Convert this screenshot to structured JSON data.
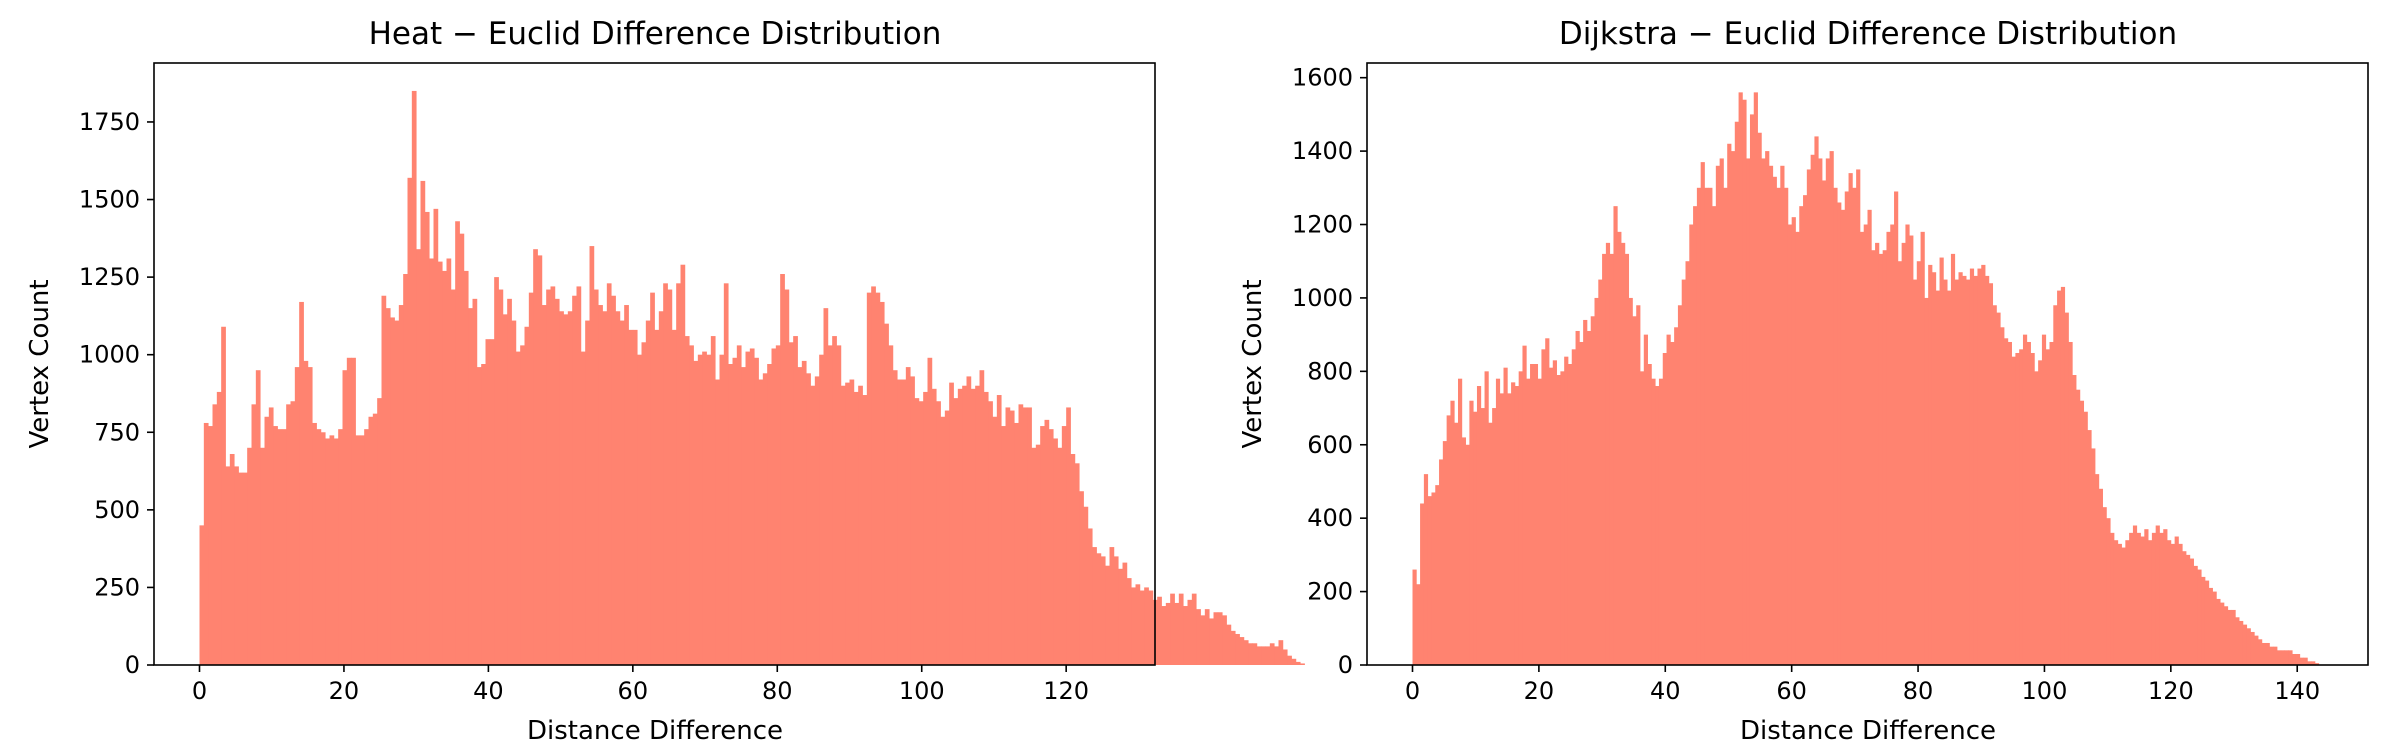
{
  "chart_data": [
    {
      "type": "bar",
      "title": "Heat − Euclid Difference Distribution",
      "xlabel": "Distance Difference",
      "ylabel": "Vertex Count",
      "xlim": [
        -6.3,
        132.3
      ],
      "ylim": [
        0,
        1940
      ],
      "xticks": [
        0,
        20,
        40,
        60,
        80,
        100,
        120
      ],
      "yticks": [
        0,
        250,
        500,
        750,
        1000,
        1250,
        1500,
        1750
      ],
      "bin_start": 0,
      "bin_width": 0.6,
      "color": "#ff8370",
      "grid": false,
      "values": [
        450,
        780,
        770,
        840,
        880,
        1090,
        640,
        680,
        640,
        620,
        620,
        700,
        840,
        950,
        700,
        800,
        830,
        770,
        760,
        760,
        840,
        850,
        960,
        1170,
        980,
        960,
        780,
        760,
        750,
        730,
        740,
        730,
        760,
        950,
        990,
        990,
        740,
        740,
        760,
        800,
        810,
        860,
        1190,
        1150,
        1120,
        1110,
        1160,
        1260,
        1570,
        1850,
        1340,
        1560,
        1460,
        1310,
        1470,
        1300,
        1270,
        1310,
        1210,
        1430,
        1390,
        1270,
        1150,
        1180,
        960,
        970,
        1050,
        1050,
        1250,
        1210,
        1130,
        1180,
        1110,
        1010,
        1030,
        1090,
        1200,
        1340,
        1320,
        1160,
        1210,
        1220,
        1180,
        1140,
        1130,
        1140,
        1190,
        1220,
        1010,
        1110,
        1350,
        1210,
        1160,
        1140,
        1230,
        1190,
        1140,
        1110,
        1160,
        1080,
        1080,
        1000,
        1040,
        1110,
        1200,
        1080,
        1140,
        1230,
        1210,
        1080,
        1230,
        1290,
        1060,
        1030,
        980,
        1000,
        1010,
        1000,
        1060,
        920,
        1000,
        1230,
        970,
        990,
        1030,
        960,
        1010,
        1020,
        990,
        920,
        940,
        970,
        1020,
        1030,
        1260,
        1210,
        1040,
        1060,
        960,
        980,
        940,
        900,
        930,
        1000,
        1150,
        1030,
        1060,
        1030,
        900,
        910,
        920,
        880,
        900,
        870,
        1200,
        1220,
        1200,
        1170,
        1100,
        1030,
        950,
        920,
        920,
        960,
        930,
        860,
        850,
        880,
        990,
        890,
        850,
        800,
        820,
        910,
        860,
        890,
        900,
        930,
        890,
        900,
        950,
        880,
        850,
        800,
        870,
        770,
        830,
        820,
        780,
        840,
        830,
        830,
        700,
        710,
        770,
        790,
        760,
        730,
        700,
        770,
        830,
        680,
        650,
        560,
        510,
        440,
        380,
        360,
        350,
        320,
        380,
        350,
        310,
        330,
        280,
        250,
        260,
        240,
        250,
        240,
        210,
        220,
        190,
        200,
        230,
        200,
        230,
        190,
        210,
        230,
        180,
        160,
        180,
        150,
        170,
        170,
        160,
        130,
        110,
        100,
        90,
        80,
        70,
        70,
        60,
        60,
        60,
        70,
        60,
        80,
        50,
        30,
        20,
        10,
        5
      ]
    },
    {
      "type": "bar",
      "title": "Dijkstra − Euclid Difference Distribution",
      "xlabel": "Distance Difference",
      "ylabel": "Vertex Count",
      "xlim": [
        -7.2,
        151.2
      ],
      "ylim": [
        0,
        1640
      ],
      "xticks": [
        0,
        20,
        40,
        60,
        80,
        100,
        120,
        140
      ],
      "yticks": [
        0,
        200,
        400,
        600,
        800,
        1000,
        1200,
        1400,
        1600
      ],
      "bin_start": 0,
      "bin_width": 0.6,
      "color": "#ff8370",
      "grid": false,
      "values": [
        260,
        220,
        440,
        520,
        460,
        470,
        490,
        560,
        610,
        680,
        720,
        660,
        780,
        620,
        600,
        720,
        690,
        760,
        700,
        800,
        660,
        700,
        780,
        740,
        810,
        740,
        770,
        760,
        800,
        870,
        780,
        820,
        820,
        780,
        860,
        890,
        810,
        830,
        790,
        800,
        840,
        820,
        860,
        910,
        880,
        940,
        910,
        950,
        1000,
        1050,
        1120,
        1150,
        1120,
        1250,
        1180,
        1150,
        1120,
        1000,
        950,
        980,
        800,
        900,
        820,
        780,
        760,
        780,
        850,
        900,
        880,
        920,
        980,
        1050,
        1100,
        1200,
        1250,
        1300,
        1370,
        1300,
        1300,
        1250,
        1360,
        1380,
        1300,
        1420,
        1400,
        1480,
        1560,
        1540,
        1380,
        1500,
        1560,
        1450,
        1380,
        1400,
        1360,
        1330,
        1300,
        1360,
        1300,
        1200,
        1220,
        1180,
        1250,
        1280,
        1350,
        1390,
        1440,
        1380,
        1320,
        1380,
        1400,
        1300,
        1260,
        1240,
        1290,
        1340,
        1300,
        1350,
        1180,
        1200,
        1240,
        1130,
        1150,
        1120,
        1130,
        1180,
        1200,
        1290,
        1100,
        1150,
        1200,
        1170,
        1050,
        1100,
        1180,
        1000,
        1090,
        1070,
        1020,
        1110,
        1050,
        1020,
        1120,
        1050,
        1070,
        1060,
        1050,
        1080,
        1060,
        1080,
        1090,
        1060,
        1040,
        980,
        960,
        920,
        890,
        880,
        840,
        850,
        860,
        900,
        880,
        850,
        800,
        830,
        900,
        860,
        880,
        980,
        1020,
        1030,
        960,
        880,
        790,
        750,
        720,
        690,
        640,
        590,
        520,
        480,
        430,
        400,
        360,
        340,
        330,
        320,
        340,
        360,
        380,
        360,
        350,
        370,
        340,
        360,
        380,
        360,
        370,
        340,
        330,
        350,
        330,
        310,
        300,
        290,
        270,
        260,
        240,
        230,
        210,
        200,
        180,
        170,
        160,
        150,
        150,
        130,
        120,
        110,
        100,
        90,
        80,
        70,
        60,
        60,
        50,
        50,
        40,
        40,
        40,
        40,
        30,
        30,
        20,
        20,
        10,
        10,
        5
      ]
    }
  ]
}
